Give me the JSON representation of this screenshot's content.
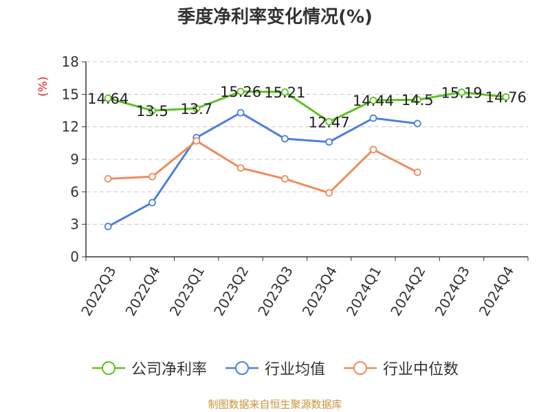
{
  "chart_data": {
    "type": "line",
    "title": "季度净利率变化情况(%)",
    "ylabel": "(%)",
    "xlabel": "",
    "categories": [
      "2022Q3",
      "2022Q4",
      "2023Q1",
      "2023Q2",
      "2023Q3",
      "2023Q4",
      "2024Q1",
      "2024Q2",
      "2024Q3",
      "2024Q4"
    ],
    "ylim": [
      0,
      18
    ],
    "yticks": [
      0,
      3,
      6,
      9,
      12,
      15,
      18
    ],
    "grid": true,
    "legend_position": "bottom",
    "series": [
      {
        "name": "公司净利率",
        "color": "#5cc31f",
        "labels": true,
        "values": [
          14.64,
          13.5,
          13.7,
          15.26,
          15.21,
          12.47,
          14.44,
          14.5,
          15.19,
          14.76
        ]
      },
      {
        "name": "行业均值",
        "color": "#4a7fdc",
        "labels": false,
        "values": [
          2.8,
          5.0,
          11.0,
          13.3,
          10.9,
          10.6,
          12.8,
          12.3,
          null,
          null
        ]
      },
      {
        "name": "行业中位数",
        "color": "#f08a5d",
        "labels": false,
        "values": [
          7.2,
          7.4,
          10.7,
          8.2,
          7.2,
          5.9,
          9.9,
          7.8,
          null,
          null
        ]
      }
    ]
  },
  "source": "制图数据来自恒生聚源数据库"
}
